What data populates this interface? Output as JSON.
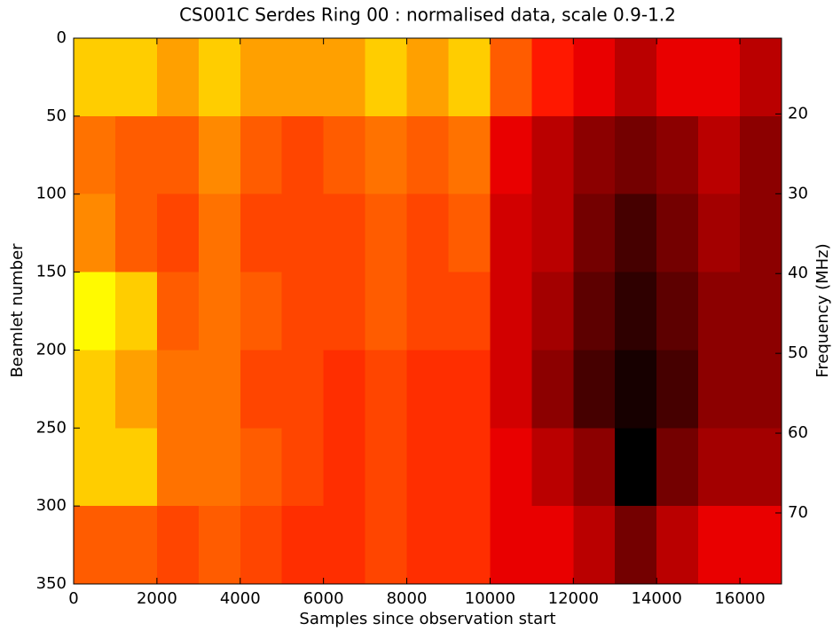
{
  "chart_data": {
    "type": "heatmap",
    "title": "CS001C Serdes Ring 00 : normalised data, scale 0.9-1.2",
    "xlabel": "Samples since observation start",
    "ylabel": "Beamlet number",
    "y2label": "Frequency (MHz)",
    "colormap": "hot",
    "clim": [
      0.9,
      1.2
    ],
    "xbins": [
      0,
      1000,
      2000,
      3000,
      4000,
      5000,
      6000,
      7000,
      8000,
      9000,
      10000,
      11000,
      12000,
      13000,
      14000,
      15000,
      16000,
      17000
    ],
    "ybins": [
      0,
      50,
      100,
      150,
      200,
      250,
      300,
      350
    ],
    "values": [
      [
        1.1,
        1.1,
        1.08,
        1.1,
        1.08,
        1.08,
        1.08,
        1.1,
        1.08,
        1.1,
        1.05,
        1.02,
        1.0,
        0.98,
        1.0,
        1.0,
        0.98
      ],
      [
        1.06,
        1.05,
        1.05,
        1.07,
        1.05,
        1.04,
        1.05,
        1.06,
        1.05,
        1.06,
        1.0,
        0.98,
        0.96,
        0.95,
        0.96,
        0.98,
        0.96
      ],
      [
        1.07,
        1.05,
        1.04,
        1.06,
        1.04,
        1.04,
        1.04,
        1.05,
        1.04,
        1.05,
        0.99,
        0.98,
        0.95,
        0.93,
        0.95,
        0.97,
        0.96
      ],
      [
        1.12,
        1.1,
        1.05,
        1.06,
        1.05,
        1.04,
        1.04,
        1.05,
        1.04,
        1.04,
        0.99,
        0.97,
        0.94,
        0.92,
        0.94,
        0.96,
        0.96
      ],
      [
        1.1,
        1.08,
        1.06,
        1.06,
        1.04,
        1.04,
        1.03,
        1.04,
        1.03,
        1.03,
        0.99,
        0.96,
        0.93,
        0.91,
        0.93,
        0.96,
        0.96
      ],
      [
        1.1,
        1.1,
        1.06,
        1.06,
        1.05,
        1.04,
        1.03,
        1.04,
        1.03,
        1.03,
        1.0,
        0.98,
        0.96,
        0.9,
        0.95,
        0.97,
        0.97
      ],
      [
        1.05,
        1.05,
        1.04,
        1.05,
        1.04,
        1.03,
        1.03,
        1.04,
        1.03,
        1.03,
        1.0,
        1.0,
        0.98,
        0.95,
        0.98,
        1.0,
        1.0
      ]
    ],
    "xlim": [
      0,
      17000
    ],
    "xticks": [
      0,
      2000,
      4000,
      6000,
      8000,
      10000,
      12000,
      14000,
      16000
    ],
    "ylim": [
      350,
      0
    ],
    "yticks": [
      0,
      50,
      100,
      150,
      200,
      250,
      300,
      350
    ],
    "y2lim": [
      78.9,
      10.5
    ],
    "y2ticks": [
      20,
      30,
      40,
      50,
      60,
      70
    ]
  }
}
